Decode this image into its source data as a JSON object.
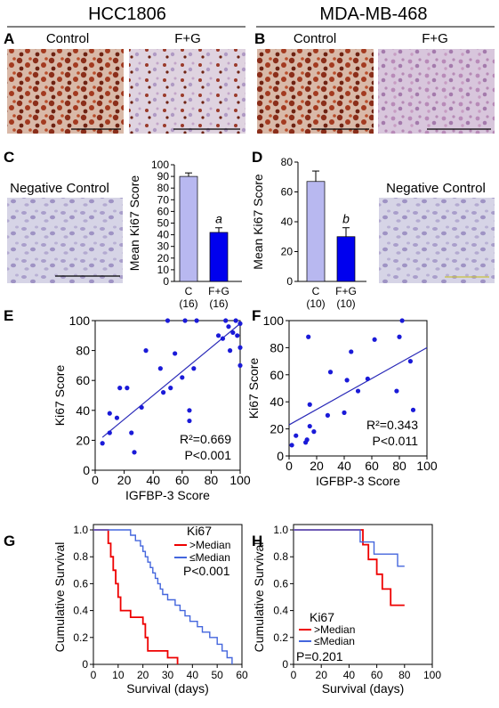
{
  "headers": {
    "left": "HCC1806",
    "right": "MDA-MB-468"
  },
  "panel_letters": {
    "A": "A",
    "B": "B",
    "C": "C",
    "D": "D",
    "E": "E",
    "F": "F",
    "G": "G",
    "H": "H"
  },
  "micrographs": {
    "control": "Control",
    "treated": "F+G",
    "negative_control": "Negative Control"
  },
  "colors": {
    "dab_brown": "#8b2e1a",
    "hematoxylin_purple": "#b6a2c8",
    "bar_control": "#b8b8f0",
    "bar_treated": "#0000ee",
    "scatter_point": "#1a1ad8",
    "curve_above": "#ee0000",
    "curve_below": "#4466dd"
  },
  "chart_data": [
    {
      "id": "C",
      "type": "bar",
      "categories": [
        "C",
        "F+G"
      ],
      "category_counts": [
        "(16)",
        "(16)"
      ],
      "values": [
        90,
        42
      ],
      "errors": [
        3,
        4
      ],
      "annotations": [
        "",
        "a"
      ],
      "ylabel": "Mean Ki67 Score",
      "ylim": [
        0,
        100
      ],
      "yticks": [
        "0",
        "10",
        "20",
        "30",
        "40",
        "50",
        "60",
        "70",
        "80",
        "90",
        "100"
      ]
    },
    {
      "id": "D",
      "type": "bar",
      "categories": [
        "C",
        "F+G"
      ],
      "category_counts": [
        "(10)",
        "(10)"
      ],
      "values": [
        67,
        30
      ],
      "errors": [
        7,
        6
      ],
      "annotations": [
        "",
        "b"
      ],
      "ylabel": "Mean Ki67 Score",
      "ylim": [
        0,
        80
      ],
      "yticks": [
        "0",
        "20",
        "40",
        "60",
        "80"
      ]
    },
    {
      "id": "E",
      "type": "scatter",
      "xlabel": "IGFBP-3 Score",
      "ylabel": "Ki67 Score",
      "xlim": [
        0,
        100
      ],
      "ylim": [
        0,
        100
      ],
      "xticks": [
        "0",
        "20",
        "40",
        "60",
        "80",
        "100"
      ],
      "yticks": [
        "0",
        "20",
        "40",
        "60",
        "80",
        "100"
      ],
      "points": [
        [
          5,
          18
        ],
        [
          10,
          25
        ],
        [
          10,
          38
        ],
        [
          15,
          35
        ],
        [
          17,
          55
        ],
        [
          22,
          55
        ],
        [
          25,
          25
        ],
        [
          27,
          12
        ],
        [
          32,
          42
        ],
        [
          35,
          80
        ],
        [
          45,
          68
        ],
        [
          47,
          52
        ],
        [
          50,
          100
        ],
        [
          52,
          55
        ],
        [
          55,
          78
        ],
        [
          60,
          62
        ],
        [
          62,
          100
        ],
        [
          65,
          33
        ],
        [
          65,
          40
        ],
        [
          68,
          68
        ],
        [
          70,
          100
        ],
        [
          85,
          90
        ],
        [
          88,
          88
        ],
        [
          90,
          100
        ],
        [
          92,
          96
        ],
        [
          93,
          80
        ],
        [
          95,
          92
        ],
        [
          97,
          100
        ],
        [
          98,
          90
        ],
        [
          100,
          98
        ],
        [
          100,
          82
        ],
        [
          100,
          70
        ]
      ],
      "fit": {
        "x": [
          5,
          100
        ],
        "y": [
          22,
          98
        ]
      },
      "stats": [
        "R²=0.669",
        "P<0.001"
      ]
    },
    {
      "id": "F",
      "type": "scatter",
      "xlabel": "IGFBP-3 Score",
      "ylabel": "Ki67 Score",
      "xlim": [
        0,
        100
      ],
      "ylim": [
        0,
        100
      ],
      "xticks": [
        "0",
        "20",
        "40",
        "60",
        "80",
        "100"
      ],
      "yticks": [
        "0",
        "20",
        "40",
        "60",
        "80",
        "100"
      ],
      "points": [
        [
          2,
          8
        ],
        [
          5,
          15
        ],
        [
          12,
          10
        ],
        [
          13,
          12
        ],
        [
          14,
          88
        ],
        [
          15,
          22
        ],
        [
          15,
          38
        ],
        [
          18,
          18
        ],
        [
          28,
          30
        ],
        [
          30,
          62
        ],
        [
          40,
          32
        ],
        [
          42,
          56
        ],
        [
          45,
          77
        ],
        [
          50,
          48
        ],
        [
          57,
          57
        ],
        [
          62,
          86
        ],
        [
          78,
          48
        ],
        [
          80,
          88
        ],
        [
          82,
          100
        ],
        [
          88,
          70
        ],
        [
          90,
          34
        ]
      ],
      "fit": {
        "x": [
          0,
          100
        ],
        "y": [
          23,
          80
        ]
      },
      "stats": [
        "R²=0.343",
        "P<0.011"
      ]
    },
    {
      "id": "G",
      "type": "line",
      "xlabel": "Survival (days)",
      "ylabel": "Cumulative Survival",
      "xlim": [
        0,
        60
      ],
      "ylim": [
        0,
        1
      ],
      "xticks": [
        "0",
        "10",
        "20",
        "30",
        "40",
        "50",
        "60"
      ],
      "yticks": [
        "0",
        "0.2",
        "0.4",
        "0.6",
        "0.8",
        "1.0"
      ],
      "legend_title": "Ki67",
      "series": [
        {
          "name": ">Median",
          "steps": [
            [
              0,
              1.0
            ],
            [
              6,
              1.0
            ],
            [
              6,
              0.9
            ],
            [
              7,
              0.9
            ],
            [
              7,
              0.8
            ],
            [
              8,
              0.8
            ],
            [
              8,
              0.7
            ],
            [
              9,
              0.7
            ],
            [
              9,
              0.6
            ],
            [
              10,
              0.6
            ],
            [
              10,
              0.5
            ],
            [
              11,
              0.5
            ],
            [
              11,
              0.4
            ],
            [
              15,
              0.4
            ],
            [
              15,
              0.35
            ],
            [
              20,
              0.35
            ],
            [
              20,
              0.3
            ],
            [
              21,
              0.3
            ],
            [
              21,
              0.2
            ],
            [
              22,
              0.2
            ],
            [
              22,
              0.1
            ],
            [
              30,
              0.1
            ],
            [
              30,
              0.05
            ],
            [
              34,
              0.05
            ],
            [
              34,
              0.0
            ]
          ]
        },
        {
          "name": "≤Median",
          "steps": [
            [
              0,
              1.0
            ],
            [
              15,
              1.0
            ],
            [
              15,
              0.96
            ],
            [
              17,
              0.96
            ],
            [
              17,
              0.92
            ],
            [
              19,
              0.92
            ],
            [
              19,
              0.88
            ],
            [
              20,
              0.88
            ],
            [
              20,
              0.84
            ],
            [
              21,
              0.84
            ],
            [
              21,
              0.8
            ],
            [
              22,
              0.8
            ],
            [
              22,
              0.76
            ],
            [
              23,
              0.76
            ],
            [
              23,
              0.72
            ],
            [
              24,
              0.72
            ],
            [
              24,
              0.68
            ],
            [
              25,
              0.68
            ],
            [
              25,
              0.64
            ],
            [
              26,
              0.64
            ],
            [
              26,
              0.6
            ],
            [
              27,
              0.6
            ],
            [
              27,
              0.56
            ],
            [
              28,
              0.56
            ],
            [
              28,
              0.52
            ],
            [
              30,
              0.52
            ],
            [
              30,
              0.48
            ],
            [
              33,
              0.48
            ],
            [
              33,
              0.44
            ],
            [
              35,
              0.44
            ],
            [
              35,
              0.4
            ],
            [
              37,
              0.4
            ],
            [
              37,
              0.36
            ],
            [
              39,
              0.36
            ],
            [
              39,
              0.32
            ],
            [
              42,
              0.32
            ],
            [
              42,
              0.28
            ],
            [
              44,
              0.28
            ],
            [
              44,
              0.24
            ],
            [
              47,
              0.24
            ],
            [
              47,
              0.2
            ],
            [
              50,
              0.2
            ],
            [
              50,
              0.15
            ],
            [
              52,
              0.15
            ],
            [
              52,
              0.1
            ],
            [
              54,
              0.1
            ],
            [
              54,
              0.05
            ],
            [
              56,
              0.05
            ],
            [
              56,
              0.0
            ]
          ]
        }
      ],
      "stats": [
        "P<0.001"
      ]
    },
    {
      "id": "H",
      "type": "line",
      "xlabel": "Survival (days)",
      "ylabel": "Cumulative Survival",
      "xlim": [
        0,
        100
      ],
      "ylim": [
        0,
        1
      ],
      "xticks": [
        "0",
        "20",
        "40",
        "60",
        "80",
        "100"
      ],
      "yticks": [
        "0",
        "0.2",
        "0.4",
        "0.6",
        "0.8",
        "1.0"
      ],
      "legend_title": "Ki67",
      "series": [
        {
          "name": ">Median",
          "steps": [
            [
              0,
              1.0
            ],
            [
              50,
              1.0
            ],
            [
              50,
              0.89
            ],
            [
              54,
              0.89
            ],
            [
              54,
              0.78
            ],
            [
              60,
              0.78
            ],
            [
              60,
              0.67
            ],
            [
              64,
              0.67
            ],
            [
              64,
              0.56
            ],
            [
              70,
              0.56
            ],
            [
              70,
              0.44
            ],
            [
              80,
              0.44
            ]
          ]
        },
        {
          "name": "≤Median",
          "steps": [
            [
              0,
              1.0
            ],
            [
              48,
              1.0
            ],
            [
              48,
              0.91
            ],
            [
              58,
              0.91
            ],
            [
              58,
              0.82
            ],
            [
              75,
              0.82
            ],
            [
              75,
              0.73
            ],
            [
              80,
              0.73
            ]
          ]
        }
      ],
      "stats": [
        "P=0.201"
      ]
    }
  ]
}
